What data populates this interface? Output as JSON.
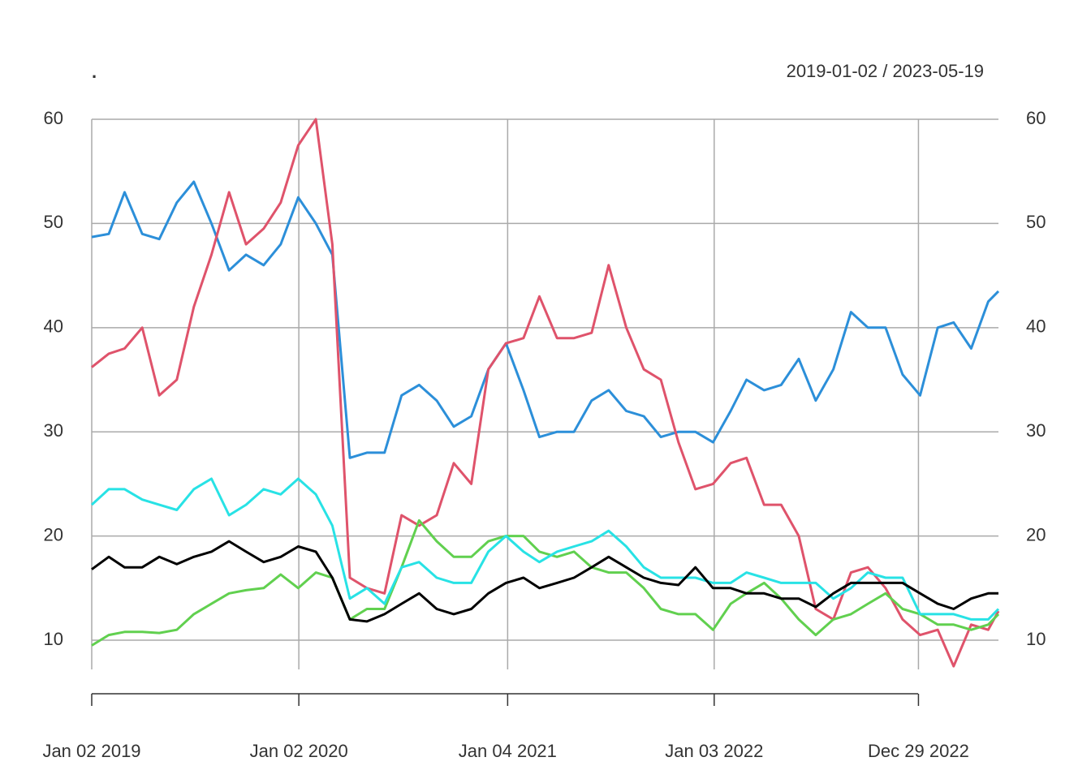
{
  "chart_data": {
    "type": "line",
    "title": ".",
    "subtitle": "2019-01-02 / 2023-05-19",
    "x": [
      "2019-01-02",
      "2019-02-01",
      "2019-03-01",
      "2019-04-01",
      "2019-05-01",
      "2019-06-01",
      "2019-07-01",
      "2019-08-01",
      "2019-09-01",
      "2019-10-01",
      "2019-11-01",
      "2019-12-01",
      "2020-01-01",
      "2020-02-01",
      "2020-03-01",
      "2020-04-01",
      "2020-05-01",
      "2020-06-01",
      "2020-07-01",
      "2020-08-01",
      "2020-09-01",
      "2020-10-01",
      "2020-11-01",
      "2020-12-01",
      "2021-01-01",
      "2021-02-01",
      "2021-03-01",
      "2021-04-01",
      "2021-05-01",
      "2021-06-01",
      "2021-07-01",
      "2021-08-01",
      "2021-09-01",
      "2021-10-01",
      "2021-11-01",
      "2021-12-01",
      "2022-01-01",
      "2022-02-01",
      "2022-03-01",
      "2022-04-01",
      "2022-05-01",
      "2022-06-01",
      "2022-07-01",
      "2022-08-01",
      "2022-09-01",
      "2022-10-01",
      "2022-11-01",
      "2022-12-01",
      "2023-01-01",
      "2023-02-01",
      "2023-03-01",
      "2023-04-01",
      "2023-05-01",
      "2023-05-19"
    ],
    "series": [
      {
        "color": "#2c8fd9",
        "values": [
          48.7,
          49,
          53,
          49,
          48.5,
          52,
          54,
          50,
          45.5,
          47,
          46,
          48,
          52.5,
          50,
          47,
          27.5,
          28,
          28,
          33.5,
          34.5,
          33,
          30.5,
          31.5,
          36,
          38.5,
          34,
          29.5,
          30,
          30,
          33,
          34,
          32,
          31.5,
          29.5,
          30,
          30,
          29,
          32,
          35,
          34,
          34.5,
          37,
          33,
          36,
          41.5,
          40,
          40,
          35.5,
          33.5,
          40,
          40.5,
          38,
          42.5,
          43.5
        ]
      },
      {
        "color": "#df536b",
        "values": [
          36.2,
          37.5,
          38,
          40,
          33.5,
          35,
          42,
          47,
          53,
          48,
          49.5,
          52,
          57.5,
          60,
          48,
          16,
          15,
          14.5,
          22,
          21,
          22,
          27,
          25,
          36,
          38.5,
          39,
          43,
          39,
          39,
          39.5,
          46,
          40,
          36,
          35,
          29,
          24.5,
          25,
          27,
          27.5,
          23,
          23,
          20,
          13,
          12,
          16.5,
          17,
          15,
          12,
          10.5,
          11,
          7.5,
          11.5,
          11,
          12.8
        ]
      },
      {
        "color": "#61d04f",
        "values": [
          9.5,
          10.5,
          10.8,
          10.8,
          10.7,
          11,
          12.5,
          13.5,
          14.5,
          14.8,
          15,
          16.3,
          15,
          16.5,
          16,
          12,
          13,
          13,
          17,
          21.5,
          19.5,
          18,
          18,
          19.5,
          20,
          20,
          18.5,
          18,
          18.5,
          17,
          16.5,
          16.5,
          15,
          13,
          12.5,
          12.5,
          11,
          13.5,
          14.5,
          15.5,
          14,
          12,
          10.5,
          12,
          12.5,
          13.5,
          14.5,
          13,
          12.5,
          11.5,
          11.5,
          11,
          11.5,
          12.5
        ]
      },
      {
        "color": "#28e2e5",
        "values": [
          23,
          24.5,
          24.5,
          23.5,
          23,
          22.5,
          24.5,
          25.5,
          22,
          23,
          24.5,
          24,
          25.5,
          24,
          21,
          14,
          15,
          13.5,
          17,
          17.5,
          16,
          15.5,
          15.5,
          18.5,
          20,
          18.5,
          17.5,
          18.5,
          19,
          19.5,
          20.5,
          19,
          17,
          16,
          16,
          16,
          15.5,
          15.5,
          16.5,
          16,
          15.5,
          15.5,
          15.5,
          14,
          15,
          16.5,
          16,
          16,
          12.5,
          12.5,
          12.5,
          12,
          12,
          13
        ]
      },
      {
        "color": "#000000",
        "values": [
          16.8,
          18,
          17,
          17,
          18,
          17.3,
          18,
          18.5,
          19.5,
          18.5,
          17.5,
          18,
          19,
          18.5,
          16,
          12,
          11.8,
          12.5,
          13.5,
          14.5,
          13,
          12.5,
          13,
          14.5,
          15.5,
          16,
          15,
          15.5,
          16,
          17,
          18,
          17,
          16,
          15.5,
          15.3,
          17,
          15,
          15,
          14.5,
          14.5,
          14,
          14,
          13.2,
          14.5,
          15.5,
          15.5,
          15.5,
          15.5,
          14.5,
          13.5,
          13,
          14,
          14.5,
          14.5
        ]
      }
    ],
    "xlim": [
      "2019-01-02",
      "2023-05-19"
    ],
    "xticks": [
      {
        "value": "2019-01-02",
        "label": "Jan 02 2019"
      },
      {
        "value": "2020-01-02",
        "label": "Jan 02 2020"
      },
      {
        "value": "2021-01-04",
        "label": "Jan 04 2021"
      },
      {
        "value": "2022-01-03",
        "label": "Jan 03 2022"
      },
      {
        "value": "2022-12-29",
        "label": "Dec 29 2022"
      }
    ],
    "ylim": [
      7.2,
      60.3
    ],
    "yticks": [
      10,
      20,
      30,
      40,
      50,
      60
    ],
    "grid": true
  }
}
